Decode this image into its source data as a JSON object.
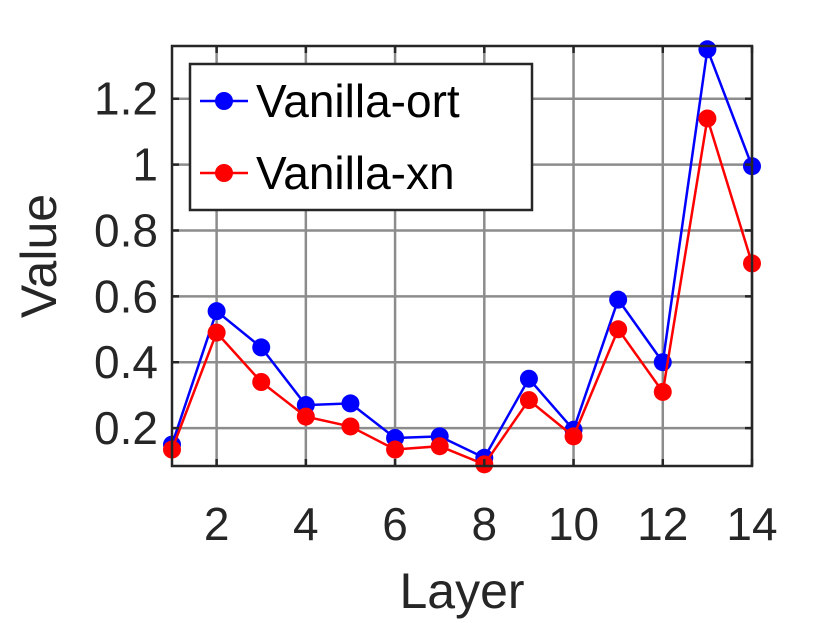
{
  "chart_data": {
    "type": "line",
    "xlabel": "Layer",
    "ylabel": "Value",
    "xlim": [
      1,
      14
    ],
    "ylim": [
      0.085,
      1.36
    ],
    "x_ticks": [
      2,
      4,
      6,
      8,
      10,
      12,
      14
    ],
    "y_ticks": [
      0.2,
      0.4,
      0.6,
      0.8,
      1,
      1.2
    ],
    "x_tick_labels": [
      "2",
      "4",
      "6",
      "8",
      "10",
      "12",
      "14"
    ],
    "y_tick_labels": [
      "0.2",
      "0.4",
      "0.6",
      "0.8",
      "1",
      "1.2"
    ],
    "grid": true,
    "legend_position": "top-left",
    "x": [
      1,
      2,
      3,
      4,
      5,
      6,
      7,
      8,
      9,
      10,
      11,
      12,
      13,
      14
    ],
    "series": [
      {
        "name": "Vanilla-ort",
        "color": "#0000ff",
        "values": [
          0.15,
          0.555,
          0.445,
          0.27,
          0.275,
          0.17,
          0.175,
          0.11,
          0.35,
          0.195,
          0.59,
          0.4,
          1.35,
          0.995
        ]
      },
      {
        "name": "Vanilla-xn",
        "color": "#ff0000",
        "values": [
          0.135,
          0.49,
          0.34,
          0.235,
          0.205,
          0.135,
          0.145,
          0.09,
          0.285,
          0.175,
          0.5,
          0.31,
          1.14,
          0.7
        ]
      }
    ]
  }
}
